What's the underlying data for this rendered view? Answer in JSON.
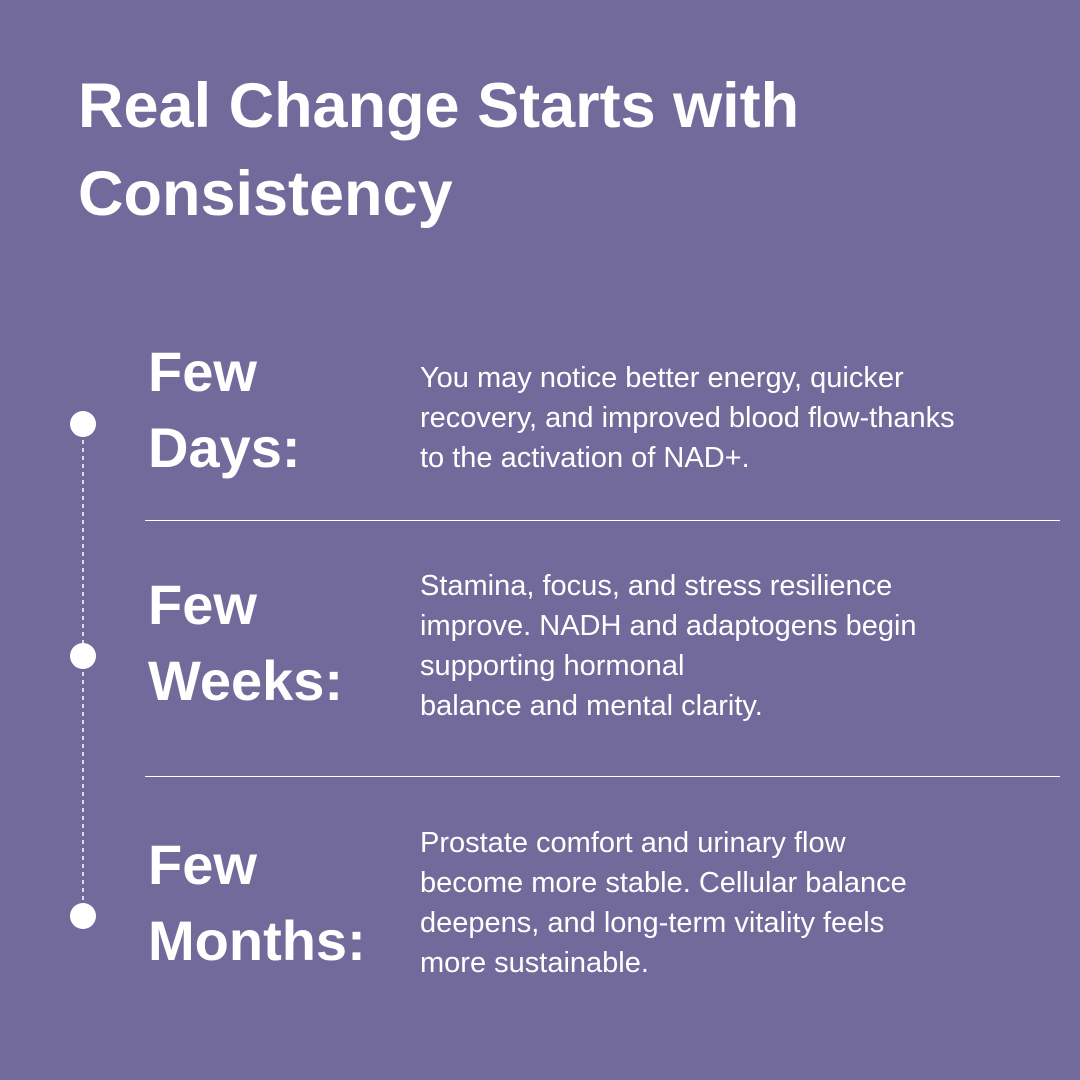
{
  "header": {
    "title": "Real Change Starts with Consistency"
  },
  "timeline": [
    {
      "label": "Few Days:",
      "description": [
        "You may notice better energy, quicker",
        "recovery, and improved blood flow-thanks",
        "to the activation of NAD+."
      ]
    },
    {
      "label": "Few Weeks:",
      "description": [
        "Stamina, focus, and stress resilience",
        "improve. NADH and adaptogens begin",
        "supporting hormonal",
        "balance and mental clarity."
      ]
    },
    {
      "label": "Few Months:",
      "description": [
        "Prostate comfort and urinary flow",
        "become more stable. Cellular balance",
        "deepens, and long-term vitality feels",
        "more sustainable."
      ]
    }
  ]
}
